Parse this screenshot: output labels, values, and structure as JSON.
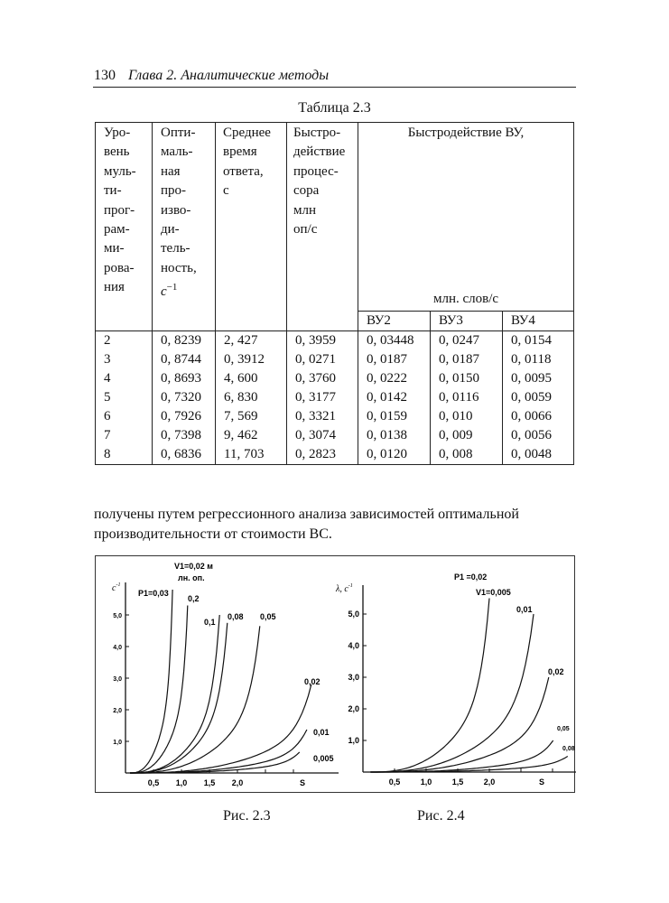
{
  "header": {
    "page_number": "130",
    "chapter": "Глава 2.  Аналитические методы"
  },
  "table": {
    "caption": "Таблица 2.3",
    "columns": [
      "Уро-\nвень\nмуль-\nти-\nпрог-\nрам-\nми-\nрова-\nния",
      "Опти-\nмаль-\nная\nпро-\nизво-\nди-\nтель-\nность,",
      "Среднее\nвремя\nответа,\nс",
      "Быстро-\nдействие\nпроцес-\nсора\nмлн\nоп/с"
    ],
    "col2_unit": {
      "base": "c",
      "sup": "−1"
    },
    "speed_header": "Быстродействие ВУ,",
    "speed_unit": "млн. слов/с",
    "sub_columns": [
      "ВУ2",
      "ВУ3",
      "ВУ4"
    ],
    "rows": [
      [
        "2",
        "0, 8239",
        "2, 427",
        "0, 3959",
        "0, 03448",
        "0, 0247",
        "0, 0154"
      ],
      [
        "3",
        "0, 8744",
        "0, 3912",
        "0, 0271",
        "0, 0187",
        "0, 0187",
        "0, 0118"
      ],
      [
        "4",
        "0, 8693",
        "4, 600",
        "0, 3760",
        "0, 0222",
        "0, 0150",
        "0, 0095"
      ],
      [
        "5",
        "0, 7320",
        "6, 830",
        "0, 3177",
        "0, 0142",
        "0, 0116",
        "0, 0059"
      ],
      [
        "6",
        "0, 7926",
        "7, 569",
        "0, 3321",
        "0, 0159",
        "0, 010",
        "0, 0066"
      ],
      [
        "7",
        "0, 7398",
        "9, 462",
        "0, 3074",
        "0, 0138",
        "0, 009",
        "0, 0056"
      ],
      [
        "8",
        "0, 6836",
        "11, 703",
        "0, 2823",
        "0, 0120",
        "0, 008",
        "0, 0048"
      ]
    ]
  },
  "paragraph": {
    "line1": "получены путем регрессионного анализа зависимостей оптимальной",
    "line2": "производительности от стоимости ВС."
  },
  "chart_data": [
    {
      "type": "line",
      "caption": "Рис. 2.3",
      "ylabel": {
        "base": "c",
        "sup": "-1"
      },
      "xlabel": "S",
      "annotation": [
        "V1=0,02 м",
        "лн. оп."
      ],
      "x_ticks": [
        "0,5",
        "1,0",
        "1,5",
        "2,0"
      ],
      "x_tick_values": [
        0.5,
        1.0,
        1.5,
        2.0
      ],
      "y_ticks": [
        "1,0",
        "2,0",
        "3,0",
        "4,0",
        "5,0"
      ],
      "y_tick_values": [
        1,
        2,
        3,
        4,
        5
      ],
      "series": [
        {
          "name": "P1=0,03",
          "end": [
            0.84,
            5.8
          ]
        },
        {
          "name": "0,2",
          "end": [
            1.11,
            5.3
          ]
        },
        {
          "name": "0,1",
          "end": [
            1.68,
            5.0
          ]
        },
        {
          "name": "0,08",
          "end": [
            1.82,
            4.75
          ]
        },
        {
          "name": "0,05",
          "end": [
            2.4,
            4.65
          ]
        },
        {
          "name": "0,02",
          "end": [
            3.32,
            2.8
          ]
        },
        {
          "name": "0,01",
          "end": [
            3.24,
            1.37
          ]
        },
        {
          "name": "0,005",
          "end": [
            3.11,
            0.66
          ]
        }
      ]
    },
    {
      "type": "line",
      "caption": "Рис. 2.4",
      "ylabel": {
        "base": "λ, c",
        "sup": "-1"
      },
      "xlabel": "S",
      "annotation": [
        "P1 =0,02"
      ],
      "x_ticks": [
        "0,5",
        "1,0",
        "1,5",
        "2,0"
      ],
      "x_tick_values": [
        0.5,
        1.0,
        1.5,
        2.0
      ],
      "y_ticks": [
        "1,0",
        "2,0",
        "3,0",
        "4,0",
        "5,0"
      ],
      "y_tick_values": [
        1,
        2,
        3,
        4,
        5
      ],
      "series": [
        {
          "name": "V1=0,005",
          "end": [
            2.0,
            5.5
          ]
        },
        {
          "name": "0,01",
          "end": [
            2.7,
            5.0
          ]
        },
        {
          "name": "0,02",
          "end": [
            2.94,
            3.0
          ]
        },
        {
          "name": "0,05",
          "end": [
            3.01,
            1.0
          ]
        },
        {
          "name": "0,08",
          "end": [
            3.24,
            0.5
          ]
        }
      ]
    }
  ]
}
